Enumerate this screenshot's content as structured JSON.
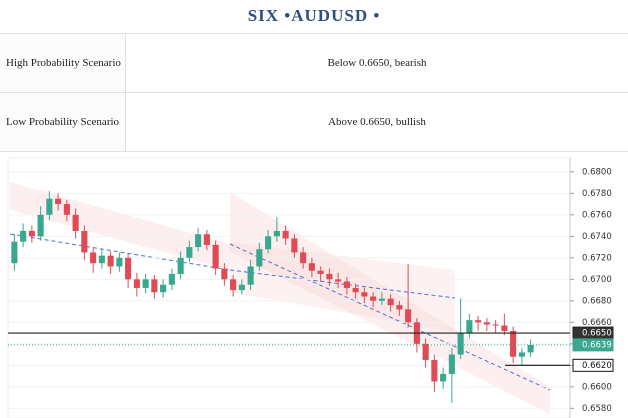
{
  "header": {
    "title": "SIX  •AUDUSD  •"
  },
  "table": {
    "rows": [
      [
        "High Probability Scenario",
        "Below 0.6650, bearish"
      ],
      [
        "Low Probability Scenario",
        "Above 0.6650, bullish"
      ]
    ]
  },
  "chart_data": {
    "type": "candlestick",
    "up_color": "#3aa88f",
    "down_color": "#e04a55",
    "ylim": [
      0.6571,
      0.6811
    ],
    "yticks": [
      {
        "value": 0.658,
        "label": "0.6580"
      },
      {
        "value": 0.66,
        "label": "0.6600"
      },
      {
        "value": 0.662,
        "label": "0.6620"
      },
      {
        "value": 0.664,
        "label": "0.6640"
      },
      {
        "value": 0.666,
        "label": "0.6660"
      },
      {
        "value": 0.668,
        "label": "0.6680"
      },
      {
        "value": 0.67,
        "label": "0.6700"
      },
      {
        "value": 0.672,
        "label": "0.6720"
      },
      {
        "value": 0.674,
        "label": "0.6740"
      },
      {
        "value": 0.676,
        "label": "0.6760"
      },
      {
        "value": 0.678,
        "label": "0.6780"
      },
      {
        "value": 0.68,
        "label": "0.6800"
      }
    ],
    "price_lines": [
      {
        "value": 0.665,
        "label": "0.6650",
        "color": "#222222"
      },
      {
        "value": 0.6639,
        "label": "0.6639",
        "color": "#3aa88f"
      },
      {
        "value": 0.662,
        "label": "0.6620",
        "color": "#111111"
      }
    ],
    "open": [
      0.6715,
      0.6735,
      0.6745,
      0.674,
      0.676,
      0.6775,
      0.677,
      0.676,
      0.6745,
      0.6725,
      0.6715,
      0.6722,
      0.6712,
      0.672,
      0.67,
      0.6692,
      0.67,
      0.6688,
      0.6695,
      0.6705,
      0.672,
      0.673,
      0.6742,
      0.6732,
      0.671,
      0.67,
      0.669,
      0.6695,
      0.6712,
      0.6728,
      0.674,
      0.6745,
      0.6738,
      0.6725,
      0.6715,
      0.6708,
      0.6705,
      0.67,
      0.6698,
      0.6692,
      0.6688,
      0.6684,
      0.668,
      0.6682,
      0.6676,
      0.6672,
      0.666,
      0.664,
      0.6625,
      0.6605,
      0.6612,
      0.663,
      0.665,
      0.6662,
      0.666,
      0.6658,
      0.6657,
      0.6652,
      0.6628,
      0.6632
    ],
    "high": [
      0.6742,
      0.6752,
      0.675,
      0.6768,
      0.6782,
      0.678,
      0.6774,
      0.6766,
      0.675,
      0.673,
      0.6728,
      0.6726,
      0.6725,
      0.6724,
      0.6706,
      0.6705,
      0.6704,
      0.67,
      0.671,
      0.6726,
      0.6736,
      0.6748,
      0.6746,
      0.6736,
      0.6715,
      0.6704,
      0.67,
      0.6718,
      0.6734,
      0.6746,
      0.6758,
      0.675,
      0.6742,
      0.673,
      0.672,
      0.6712,
      0.671,
      0.6706,
      0.6702,
      0.6696,
      0.6692,
      0.6688,
      0.6688,
      0.6686,
      0.668,
      0.6714,
      0.6664,
      0.6645,
      0.663,
      0.6618,
      0.6636,
      0.6682,
      0.6668,
      0.6666,
      0.6664,
      0.6662,
      0.6668,
      0.6656,
      0.6636,
      0.6644
    ],
    "low": [
      0.6708,
      0.673,
      0.6734,
      0.6736,
      0.6755,
      0.6764,
      0.6754,
      0.6738,
      0.6718,
      0.6706,
      0.671,
      0.6705,
      0.6707,
      0.6692,
      0.6684,
      0.6687,
      0.6682,
      0.6683,
      0.669,
      0.67,
      0.6716,
      0.6726,
      0.6727,
      0.6704,
      0.6694,
      0.6684,
      0.6686,
      0.669,
      0.6708,
      0.6724,
      0.6735,
      0.6732,
      0.672,
      0.671,
      0.6702,
      0.6698,
      0.6694,
      0.6692,
      0.6686,
      0.6682,
      0.6678,
      0.6674,
      0.6676,
      0.667,
      0.6666,
      0.6655,
      0.6632,
      0.6618,
      0.6595,
      0.6598,
      0.6585,
      0.6626,
      0.6645,
      0.6652,
      0.6652,
      0.665,
      0.6648,
      0.6622,
      0.662,
      0.6628
    ],
    "close": [
      0.6735,
      0.6745,
      0.674,
      0.676,
      0.6775,
      0.677,
      0.676,
      0.6745,
      0.6725,
      0.6715,
      0.6722,
      0.6712,
      0.672,
      0.67,
      0.6692,
      0.67,
      0.6688,
      0.6695,
      0.6705,
      0.672,
      0.673,
      0.6742,
      0.6732,
      0.671,
      0.67,
      0.669,
      0.6695,
      0.6712,
      0.6728,
      0.674,
      0.6745,
      0.6738,
      0.6725,
      0.6715,
      0.6708,
      0.6705,
      0.67,
      0.6698,
      0.6692,
      0.6688,
      0.6684,
      0.668,
      0.6682,
      0.6676,
      0.6672,
      0.666,
      0.664,
      0.6625,
      0.6605,
      0.6612,
      0.663,
      0.665,
      0.6662,
      0.666,
      0.6658,
      0.6657,
      0.6652,
      0.6628,
      0.6632,
      0.6639
    ]
  }
}
